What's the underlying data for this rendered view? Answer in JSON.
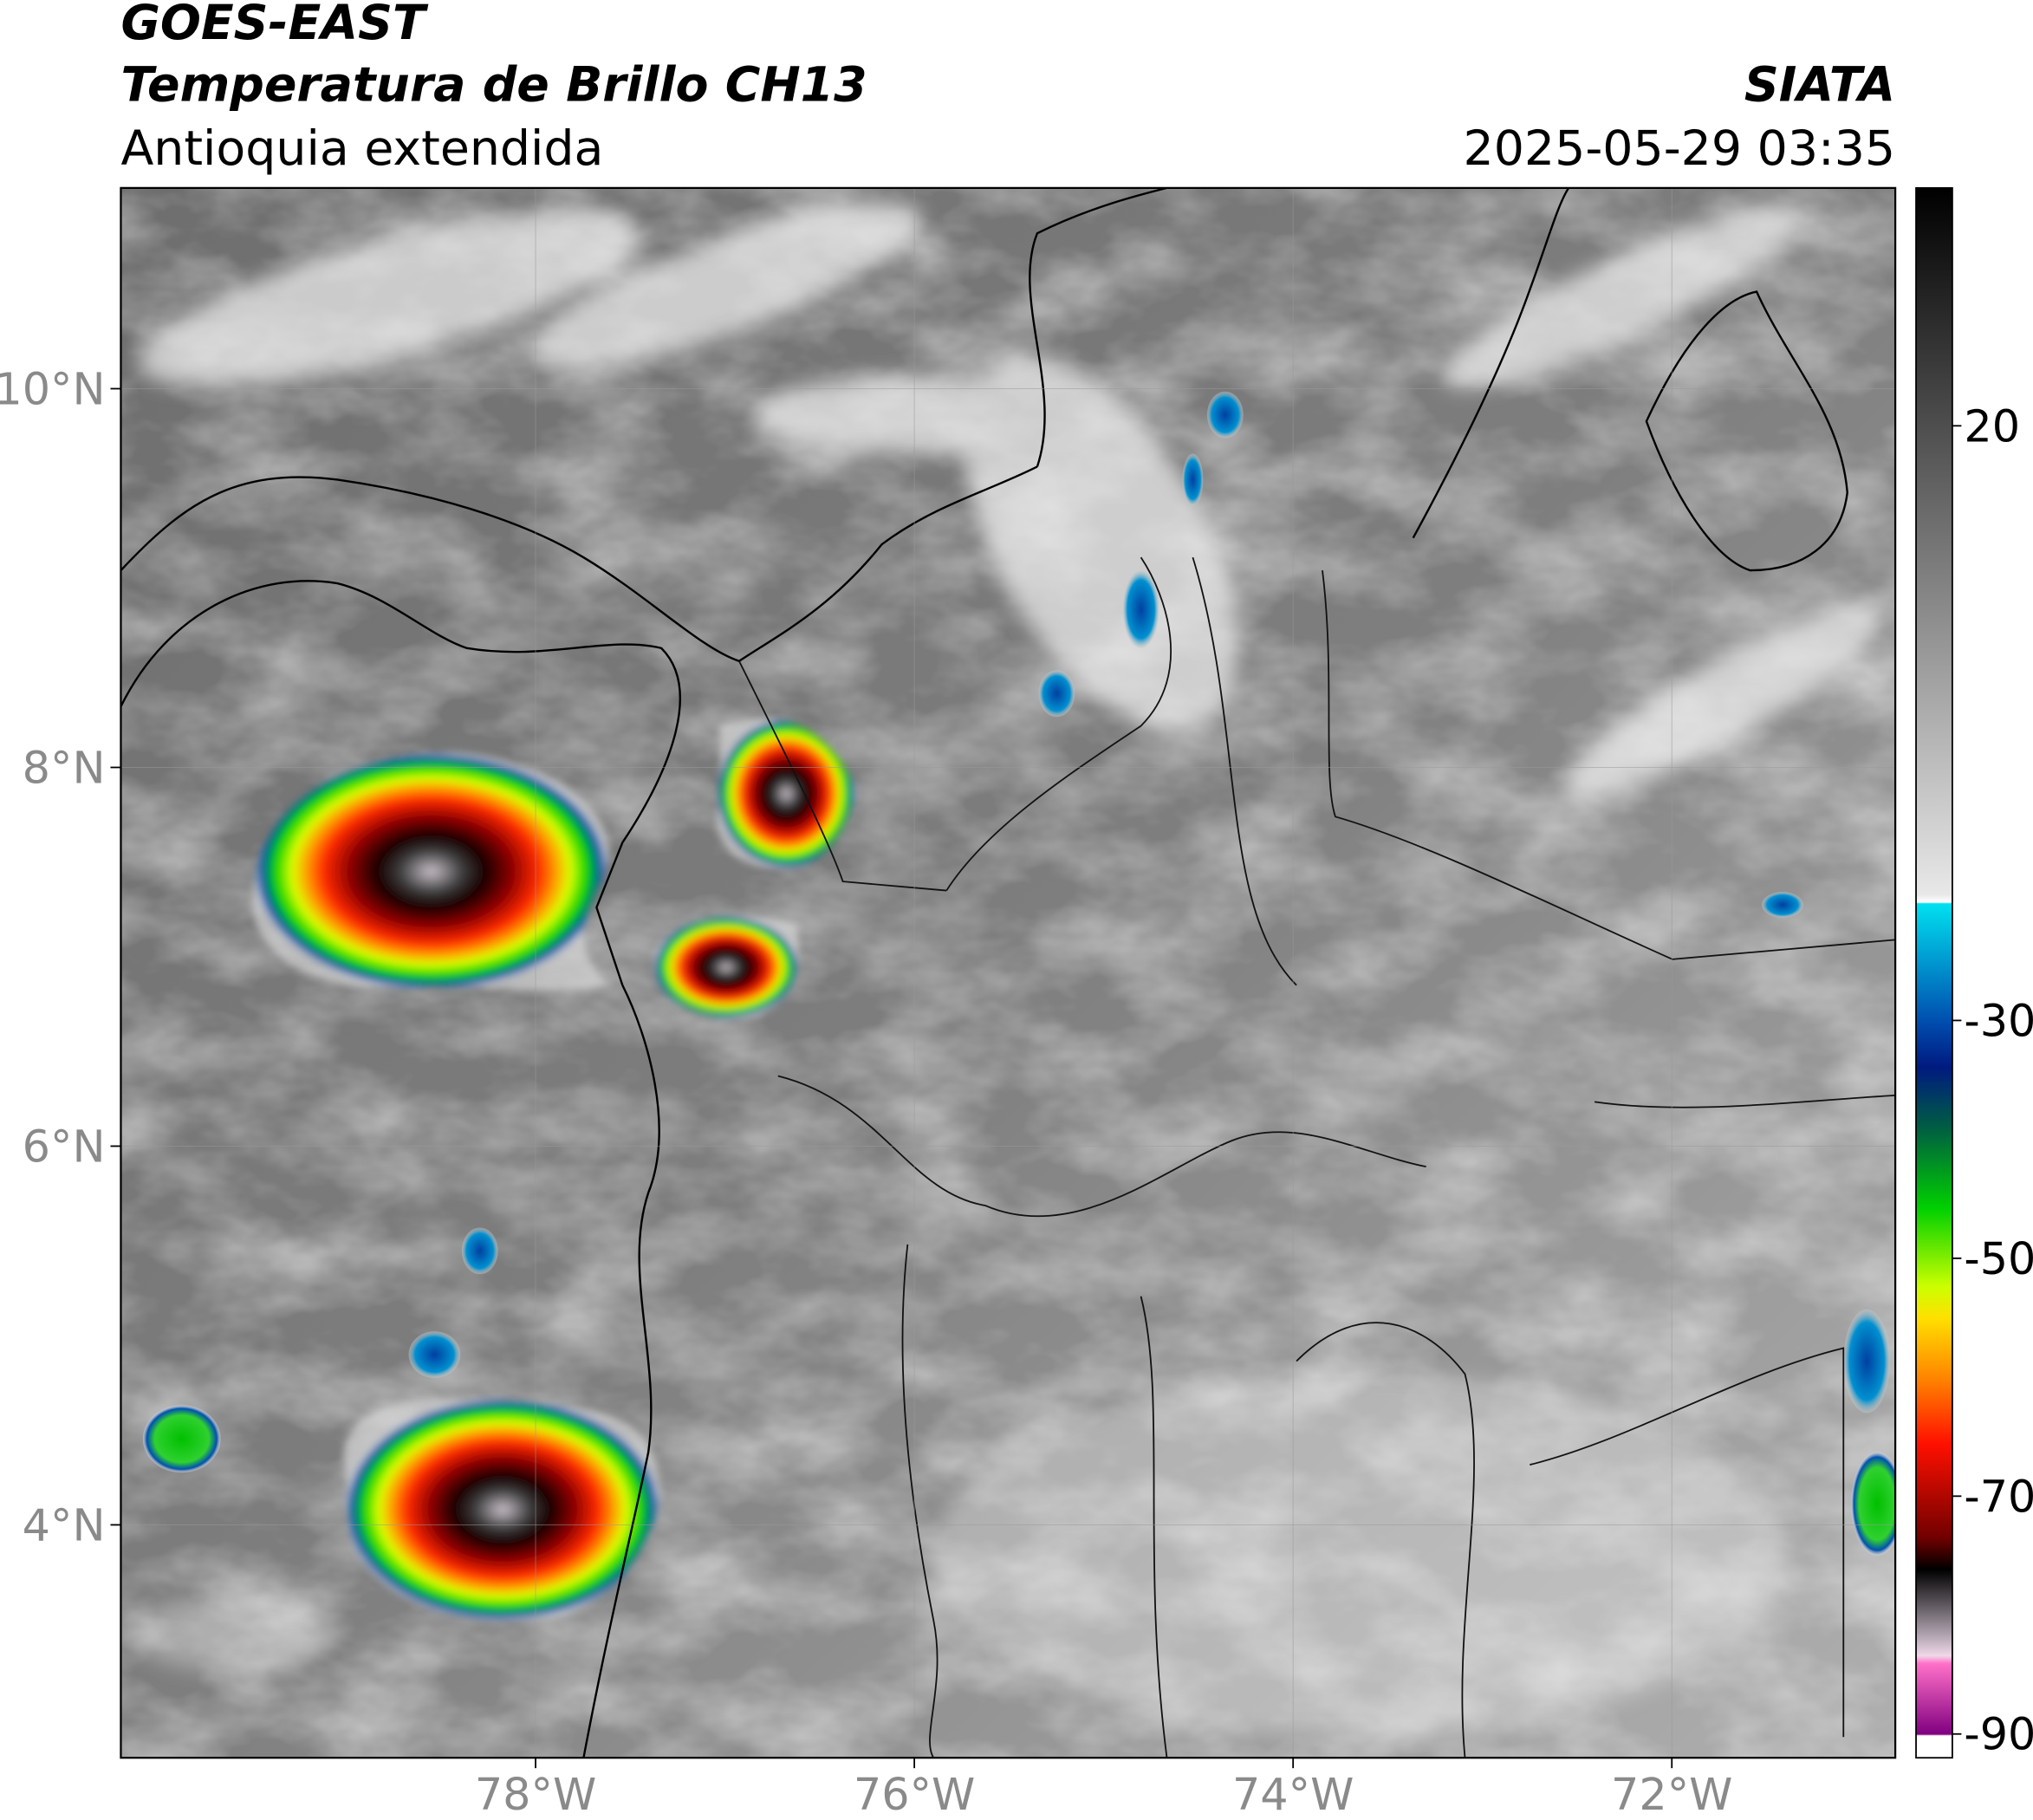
{
  "header": {
    "title": "GOES-EAST",
    "subtitle": "Temperatura de Brillo CH13",
    "region": "Antioquia extendida",
    "source": "SIATA",
    "datetime": "2025-05-29 03:35"
  },
  "map": {
    "lonlim": [
      -80.19,
      -70.82
    ],
    "latlim": [
      2.77,
      11.06
    ],
    "lon_ticks": [
      {
        "value": -78,
        "label": "78°W"
      },
      {
        "value": -76,
        "label": "76°W"
      },
      {
        "value": -74,
        "label": "74°W"
      },
      {
        "value": -72,
        "label": "72°W"
      }
    ],
    "lat_ticks": [
      {
        "value": 4,
        "label": "4°N"
      },
      {
        "value": 6,
        "label": "6°N"
      },
      {
        "value": 8,
        "label": "8°N"
      },
      {
        "value": 10,
        "label": "10°N"
      }
    ]
  },
  "colorbar": {
    "lim": [
      -92,
      40
    ],
    "ticks": [
      20,
      -30,
      -50,
      -70,
      -90
    ]
  }
}
